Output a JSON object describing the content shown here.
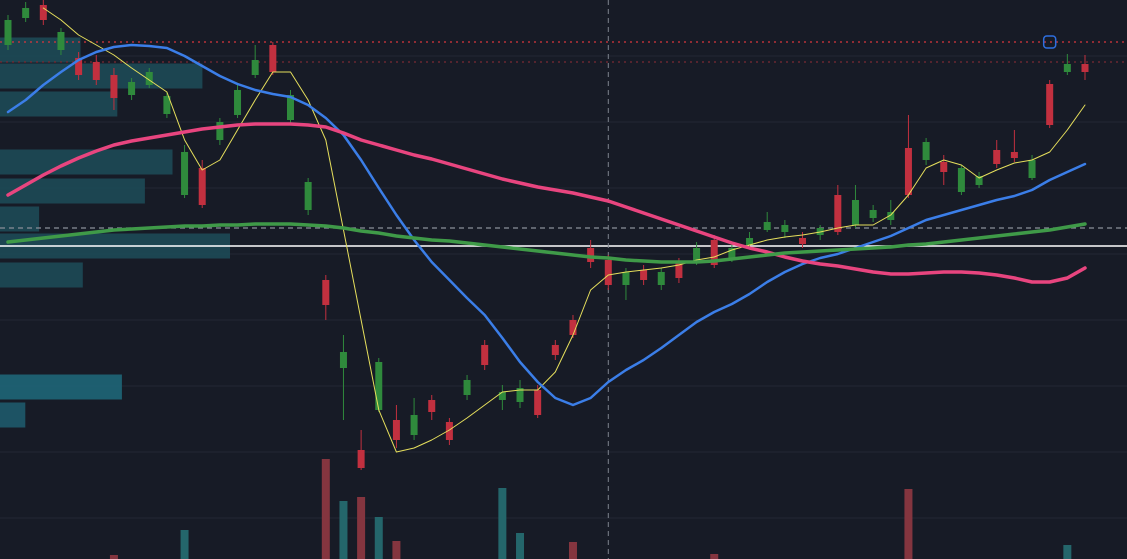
{
  "chart_data": {
    "type": "candlestick",
    "ylim": [
      0,
      559
    ],
    "gridlines": [
      503,
      437,
      371,
      305,
      239,
      173,
      107,
      41
    ],
    "up_color": "#2f8a3c",
    "down_color": "#c2303f",
    "open": [
      514,
      541,
      554,
      509,
      501,
      497,
      484,
      464,
      474,
      445,
      364,
      391,
      419,
      444,
      484,
      514,
      439,
      349,
      279,
      191,
      109,
      149,
      139,
      124,
      159,
      137,
      164,
      214,
      159,
      157,
      169,
      214,
      239,
      311,
      299,
      274,
      289,
      274,
      297,
      297,
      319,
      301,
      314,
      329,
      327,
      321,
      324,
      364,
      334,
      341,
      339,
      411,
      399,
      397,
      367,
      374,
      409,
      407,
      381,
      475,
      487,
      495
    ],
    "high": [
      544,
      557,
      559,
      531,
      507,
      504,
      491,
      481,
      491,
      467,
      414,
      399,
      441,
      474,
      514,
      517,
      469,
      381,
      284,
      224,
      129,
      201,
      154,
      161,
      164,
      141,
      184,
      219,
      174,
      179,
      174,
      219,
      244,
      319,
      304,
      291,
      294,
      291,
      301,
      317,
      324,
      315,
      327,
      347,
      339,
      327,
      334,
      374,
      374,
      354,
      359,
      444,
      421,
      404,
      394,
      387,
      419,
      429,
      404,
      479,
      505,
      504
    ],
    "low": [
      509,
      537,
      534,
      504,
      479,
      474,
      449,
      459,
      471,
      441,
      361,
      351,
      414,
      441,
      481,
      484,
      434,
      344,
      239,
      139,
      89,
      147,
      111,
      119,
      139,
      114,
      159,
      189,
      149,
      151,
      141,
      199,
      221,
      291,
      269,
      259,
      274,
      269,
      276,
      294,
      291,
      297,
      311,
      327,
      321,
      311,
      319,
      324,
      331,
      337,
      334,
      361,
      394,
      374,
      364,
      371,
      391,
      397,
      379,
      431,
      484,
      479
    ],
    "close": [
      539,
      551,
      539,
      527,
      484,
      479,
      461,
      477,
      487,
      463,
      407,
      354,
      437,
      469,
      499,
      487,
      464,
      377,
      254,
      207,
      91,
      197,
      119,
      144,
      147,
      119,
      179,
      194,
      167,
      171,
      144,
      204,
      224,
      297,
      274,
      287,
      279,
      287,
      281,
      311,
      294,
      311,
      321,
      337,
      334,
      315,
      331,
      327,
      359,
      349,
      347,
      364,
      417,
      387,
      391,
      383,
      395,
      401,
      399,
      434,
      495,
      487
    ],
    "series": [
      {
        "color": "#e6df5c",
        "values": [
          null,
          null,
          551,
          539,
          524,
          514,
          504,
          491,
          479,
          467,
          419,
          389,
          399,
          429,
          459,
          487,
          487,
          459,
          419,
          329,
          239,
          149,
          107,
          111,
          119,
          129,
          141,
          154,
          167,
          169,
          169,
          187,
          224,
          269,
          284,
          287,
          289,
          291,
          294,
          299,
          302,
          309,
          314,
          319,
          322,
          324,
          327,
          331,
          334,
          334,
          344,
          364,
          391,
          399,
          394,
          381,
          389,
          396,
          399,
          407,
          429,
          454
        ]
      },
      {
        "color": "#3b7ee8",
        "values": [
          447,
          459,
          474,
          487,
          499,
          507,
          512,
          514,
          513,
          511,
          503,
          493,
          483,
          475,
          469,
          465,
          462,
          454,
          441,
          424,
          399,
          371,
          344,
          319,
          297,
          279,
          261,
          244,
          221,
          197,
          177,
          161,
          154,
          161,
          177,
          189,
          199,
          211,
          224,
          237,
          247,
          255,
          265,
          277,
          287,
          295,
          301,
          305,
          311,
          317,
          323,
          331,
          339,
          344,
          349,
          354,
          359,
          363,
          369,
          379,
          387,
          395
        ]
      },
      {
        "color": "#e8457f",
        "values": [
          364,
          374,
          384,
          393,
          401,
          408,
          414,
          418,
          421,
          424,
          427,
          430,
          432,
          434,
          435,
          435,
          435,
          434,
          432,
          426,
          419,
          414,
          409,
          404,
          400,
          395,
          390,
          385,
          380,
          376,
          372,
          369,
          366,
          362,
          358,
          352,
          346,
          340,
          334,
          328,
          322,
          316,
          311,
          307,
          302,
          298,
          295,
          293,
          290,
          287,
          285,
          285,
          286,
          287,
          287,
          286,
          284,
          281,
          277,
          277,
          281,
          291
        ]
      },
      {
        "color": "#3f9a48",
        "values": [
          317,
          319,
          321,
          323,
          325,
          327,
          329,
          330,
          331,
          332,
          333,
          333,
          334,
          334,
          335,
          335,
          335,
          334,
          333,
          331,
          328,
          326,
          323,
          321,
          319,
          318,
          316,
          314,
          312,
          310,
          308,
          306,
          304,
          302,
          301,
          299,
          298,
          297,
          297,
          297,
          298,
          300,
          302,
          304,
          306,
          307,
          308,
          309,
          310,
          311,
          312,
          314,
          315,
          317,
          319,
          321,
          323,
          325,
          327,
          329,
          332,
          335
        ]
      }
    ],
    "volume": {
      "ylim": [
        0,
        100
      ],
      "up_color": "#24666b",
      "down_color": "#84353f",
      "values": [
        0,
        0,
        0,
        0,
        0,
        0,
        4,
        0,
        0,
        0,
        29,
        0,
        0,
        0,
        0,
        0,
        0,
        0,
        100,
        58,
        62,
        42,
        18,
        0,
        0,
        0,
        0,
        0,
        71,
        26,
        0,
        0,
        17,
        0,
        0,
        0,
        0,
        0,
        0,
        0,
        5,
        0,
        0,
        0,
        0,
        0,
        0,
        0,
        0,
        0,
        0,
        70,
        0,
        0,
        0,
        0,
        0,
        0,
        0,
        0,
        14,
        0
      ]
    },
    "volume_profile": {
      "xlim": [
        0,
        100
      ],
      "levels": [
        509,
        483,
        455,
        397,
        368,
        340,
        313,
        284,
        172,
        144
      ],
      "values": [
        35,
        88,
        51,
        75,
        63,
        17,
        100,
        36,
        53,
        11
      ],
      "colors": [
        "#1d4a57",
        "#1d4a57",
        "#1d4a57",
        "#1d4a57",
        "#1d4a57",
        "#1d4a57",
        "#1d4a57",
        "#1d4a57",
        "#1e6678",
        "#1e5a6b"
      ]
    },
    "price_lines": [
      {
        "value": 517,
        "color": "#d9363e",
        "style": "dotted"
      },
      {
        "value": 497,
        "color": "#7a2a33",
        "style": "dotted"
      },
      {
        "value": 331,
        "color": "#8a8f9a",
        "style": "dashed"
      },
      {
        "value": 313,
        "color": "#ffffff",
        "style": "solid"
      }
    ],
    "crosshair": {
      "index": 34,
      "color": "#7d828d"
    },
    "alert": {
      "index": 59,
      "value": 517,
      "color": "#2f6fe0"
    }
  }
}
